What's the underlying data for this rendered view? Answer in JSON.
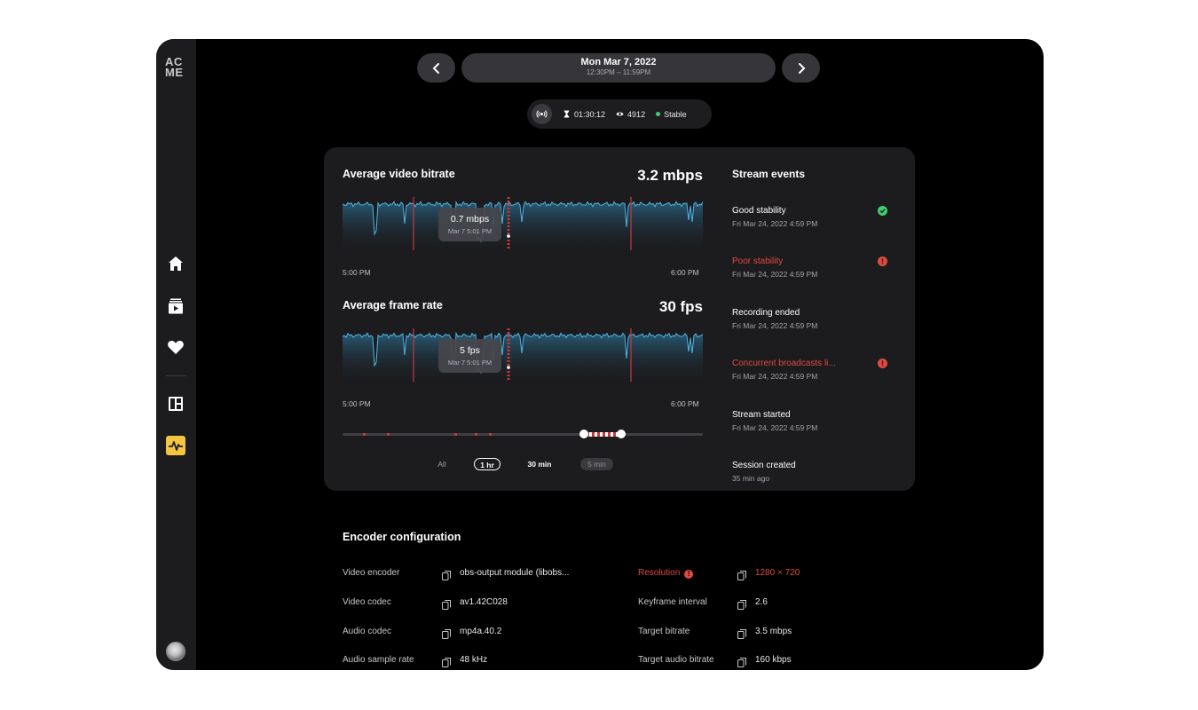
{
  "logo": "AC ME",
  "header": {
    "date": "Mon Mar 7, 2022",
    "time_range": "12:30PM – 11:59PM"
  },
  "stats": {
    "duration": "01:30:12",
    "viewers": "4912",
    "status": "Stable"
  },
  "bitrate": {
    "title": "Average video bitrate",
    "value": "3.2 mbps",
    "tooltip_value": "0.7 mbps",
    "tooltip_date": "Mar 7 5:01 PM",
    "x_start": "5:00 PM",
    "x_end": "6:00 PM"
  },
  "framerate": {
    "title": "Average frame rate",
    "value": "30 fps",
    "tooltip_value": "5 fps",
    "tooltip_date": "Mar 7 5:01 PM",
    "x_start": "5:00 PM",
    "x_end": "6:00 PM"
  },
  "ranges": {
    "all": "All",
    "one_hr": "1 hr",
    "thirty_min": "30 min",
    "five_min": "5 min"
  },
  "events": {
    "title": "Stream events",
    "items": [
      {
        "name": "Good stability",
        "time": "Fri Mar 24, 2022 4:59 PM",
        "status": "ok"
      },
      {
        "name": "Poor stability",
        "time": "Fri Mar 24, 2022 4:59 PM",
        "status": "error"
      },
      {
        "name": "Recording ended",
        "time": "Fri Mar 24, 2022 4:59 PM",
        "status": "none"
      },
      {
        "name": "Concurrent broadcasts li...",
        "time": "Fri Mar 24, 2022 4:59 PM",
        "status": "error"
      },
      {
        "name": "Stream started",
        "time": "Fri Mar 24, 2022 4:59 PM",
        "status": "none"
      },
      {
        "name": "Session created",
        "time": "35 min ago",
        "status": "none"
      }
    ]
  },
  "encoder": {
    "title": "Encoder configuration",
    "left": [
      {
        "label": "Video encoder",
        "value": "obs-output module (libobs..."
      },
      {
        "label": "Video codec",
        "value": "av1.42C028"
      },
      {
        "label": "Audio codec",
        "value": "mp4a.40.2"
      },
      {
        "label": "Audio sample rate",
        "value": "48 kHz"
      }
    ],
    "right": [
      {
        "label": "Resolution",
        "value": "1280 × 720"
      },
      {
        "label": "Keyframe interval",
        "value": "2.6"
      },
      {
        "label": "Target bitrate",
        "value": "3.5 mbps"
      },
      {
        "label": "Target audio bitrate",
        "value": "160 kbps"
      }
    ]
  },
  "colors": {
    "accent": "#f5c542",
    "error": "#e04a3f",
    "ok": "#3ccf6e",
    "chart_line": "#4fb6e6"
  }
}
